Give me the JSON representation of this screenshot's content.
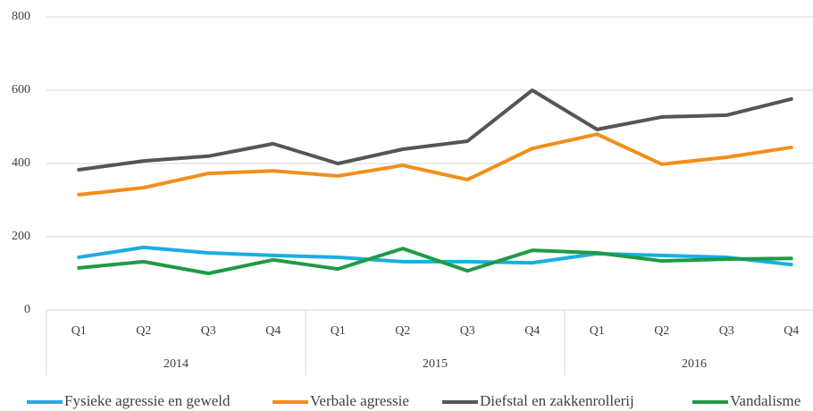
{
  "chart_data": {
    "type": "line",
    "categories": [
      "Q1",
      "Q2",
      "Q3",
      "Q4",
      "Q1",
      "Q2",
      "Q3",
      "Q4",
      "Q1",
      "Q2",
      "Q3",
      "Q4"
    ],
    "groups": [
      "2014",
      "2015",
      "2016"
    ],
    "series": [
      {
        "name": "Fysieke agressie en geweld",
        "color": "#1aaee0",
        "values": [
          144,
          171,
          156,
          149,
          144,
          132,
          132,
          129,
          154,
          149,
          144,
          124
        ]
      },
      {
        "name": "Verbale agressie",
        "color": "#f28e1a",
        "values": [
          315,
          334,
          373,
          380,
          366,
          395,
          356,
          441,
          480,
          398,
          417,
          444
        ]
      },
      {
        "name": "Diefstal en zakkenrollerij",
        "color": "#555555",
        "values": [
          383,
          407,
          420,
          454,
          400,
          439,
          461,
          600,
          493,
          527,
          532,
          576
        ]
      },
      {
        "name": "Vandalisme",
        "color": "#1f9a45",
        "values": [
          115,
          132,
          100,
          137,
          112,
          168,
          107,
          163,
          156,
          134,
          139,
          141
        ]
      }
    ],
    "ylim": [
      0,
      800
    ],
    "yticks": [
      0,
      200,
      400,
      600,
      800
    ],
    "grid": true
  }
}
